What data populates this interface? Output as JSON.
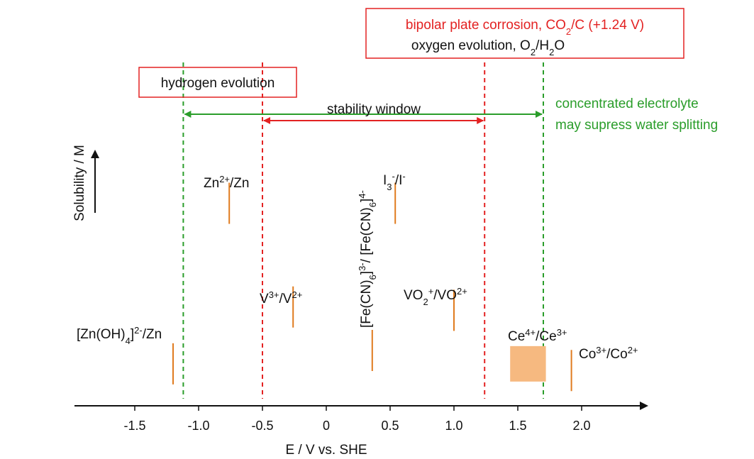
{
  "chart_data": {
    "type": "scatter",
    "title": "",
    "xlabel": "E / V vs. SHE",
    "ylabel": "Solubility / M",
    "xlim": [
      -1.9,
      2.45
    ],
    "xticks": [
      {
        "value": -1.5,
        "label": "-1.5"
      },
      {
        "value": -1.0,
        "label": "-1.0"
      },
      {
        "value": -0.5,
        "label": "-0.5"
      },
      {
        "value": 0,
        "label": "0"
      },
      {
        "value": 0.5,
        "label": "0.5"
      },
      {
        "value": 1.0,
        "label": "1.0"
      },
      {
        "value": 1.5,
        "label": "1.5"
      },
      {
        "value": 2.0,
        "label": "2.0"
      }
    ],
    "couples": [
      {
        "name": "zinc-hydroxide",
        "pre": "[Zn(OH)",
        "sub": "4",
        "post": "]",
        "sup": "2-",
        "tail": "/Zn",
        "potential": -1.2,
        "relative_solubility": 0.1
      },
      {
        "name": "zinc",
        "pre": "Zn",
        "sup": "2+",
        "tail": "/Zn",
        "potential": -0.76,
        "relative_solubility": 0.58
      },
      {
        "name": "vanadium",
        "pre": "V",
        "sup": "3+",
        "mid": "/V",
        "sup2": "2+",
        "potential": -0.26,
        "relative_solubility": 0.27
      },
      {
        "name": "ferricyanide",
        "pre": "[Fe(CN)",
        "sub": "6",
        "post": "]",
        "sup": "3-",
        "mid": "/ [Fe(CN)",
        "sub2": "6",
        "post2": "]",
        "sup2": "4-",
        "potential": 0.36,
        "relative_solubility": 0.14
      },
      {
        "name": "iodide",
        "pre": "I",
        "sub": "3",
        "sup": "-",
        "mid": "/I",
        "sup2": "-",
        "potential": 0.54,
        "relative_solubility": 0.58
      },
      {
        "name": "vanadyl",
        "pre": "VO",
        "sub": "2",
        "sup": "+",
        "mid": "/VO",
        "sup2": "2+",
        "potential": 1.0,
        "relative_solubility": 0.26
      },
      {
        "name": "cerium",
        "pre": "Ce",
        "sup": "4+",
        "mid": "/Ce",
        "sup2": "3+",
        "potential_range": [
          1.44,
          1.72
        ],
        "relative_solubility": 0.1
      },
      {
        "name": "cobalt",
        "pre": "Co",
        "sup": "3+",
        "mid": "/Co",
        "sup2": "2+",
        "potential": 1.92,
        "relative_solubility": 0.08
      }
    ],
    "reference_lines": [
      {
        "name": "hydrogen-evolution-line",
        "value": -0.5,
        "color": "#e32222"
      },
      {
        "name": "bipolar-plate-corrosion-line",
        "value": 1.24,
        "color": "#e32222"
      },
      {
        "name": "hydrogen-evolution-concentrated-line",
        "value": -1.12,
        "color": "#2a9d2a"
      },
      {
        "name": "oxygen-evolution-concentrated-line",
        "value": 1.7,
        "color": "#2a9d2a"
      }
    ],
    "windows": [
      {
        "name": "stability-window-red",
        "from": -0.5,
        "to": 1.24,
        "color": "#e32222"
      },
      {
        "name": "stability-window-green",
        "from": -1.12,
        "to": 1.7,
        "color": "#2a9d2a"
      }
    ],
    "annotations": {
      "hydrogen_evolution": "hydrogen evolution",
      "bipolar_corrosion_pre": "bipolar plate corrosion, CO",
      "bipolar_corrosion_sub": "2",
      "bipolar_corrosion_post": "/C (+1.24 V)",
      "oxygen_evolution_pre": "oxygen evolution, O",
      "oxygen_evolution_sub": "2",
      "oxygen_evolution_mid": "/H",
      "oxygen_evolution_sub2": "2",
      "oxygen_evolution_post": "O",
      "stability_window": "stability window",
      "concentrated_line1": "concentrated electrolyte",
      "concentrated_line2": "may supress water splitting"
    },
    "colors": {
      "mark": "#e07b1f",
      "cerium_fill": "#f6b980",
      "red": "#e32222",
      "green": "#2a9d2a",
      "axis": "#111111"
    }
  }
}
